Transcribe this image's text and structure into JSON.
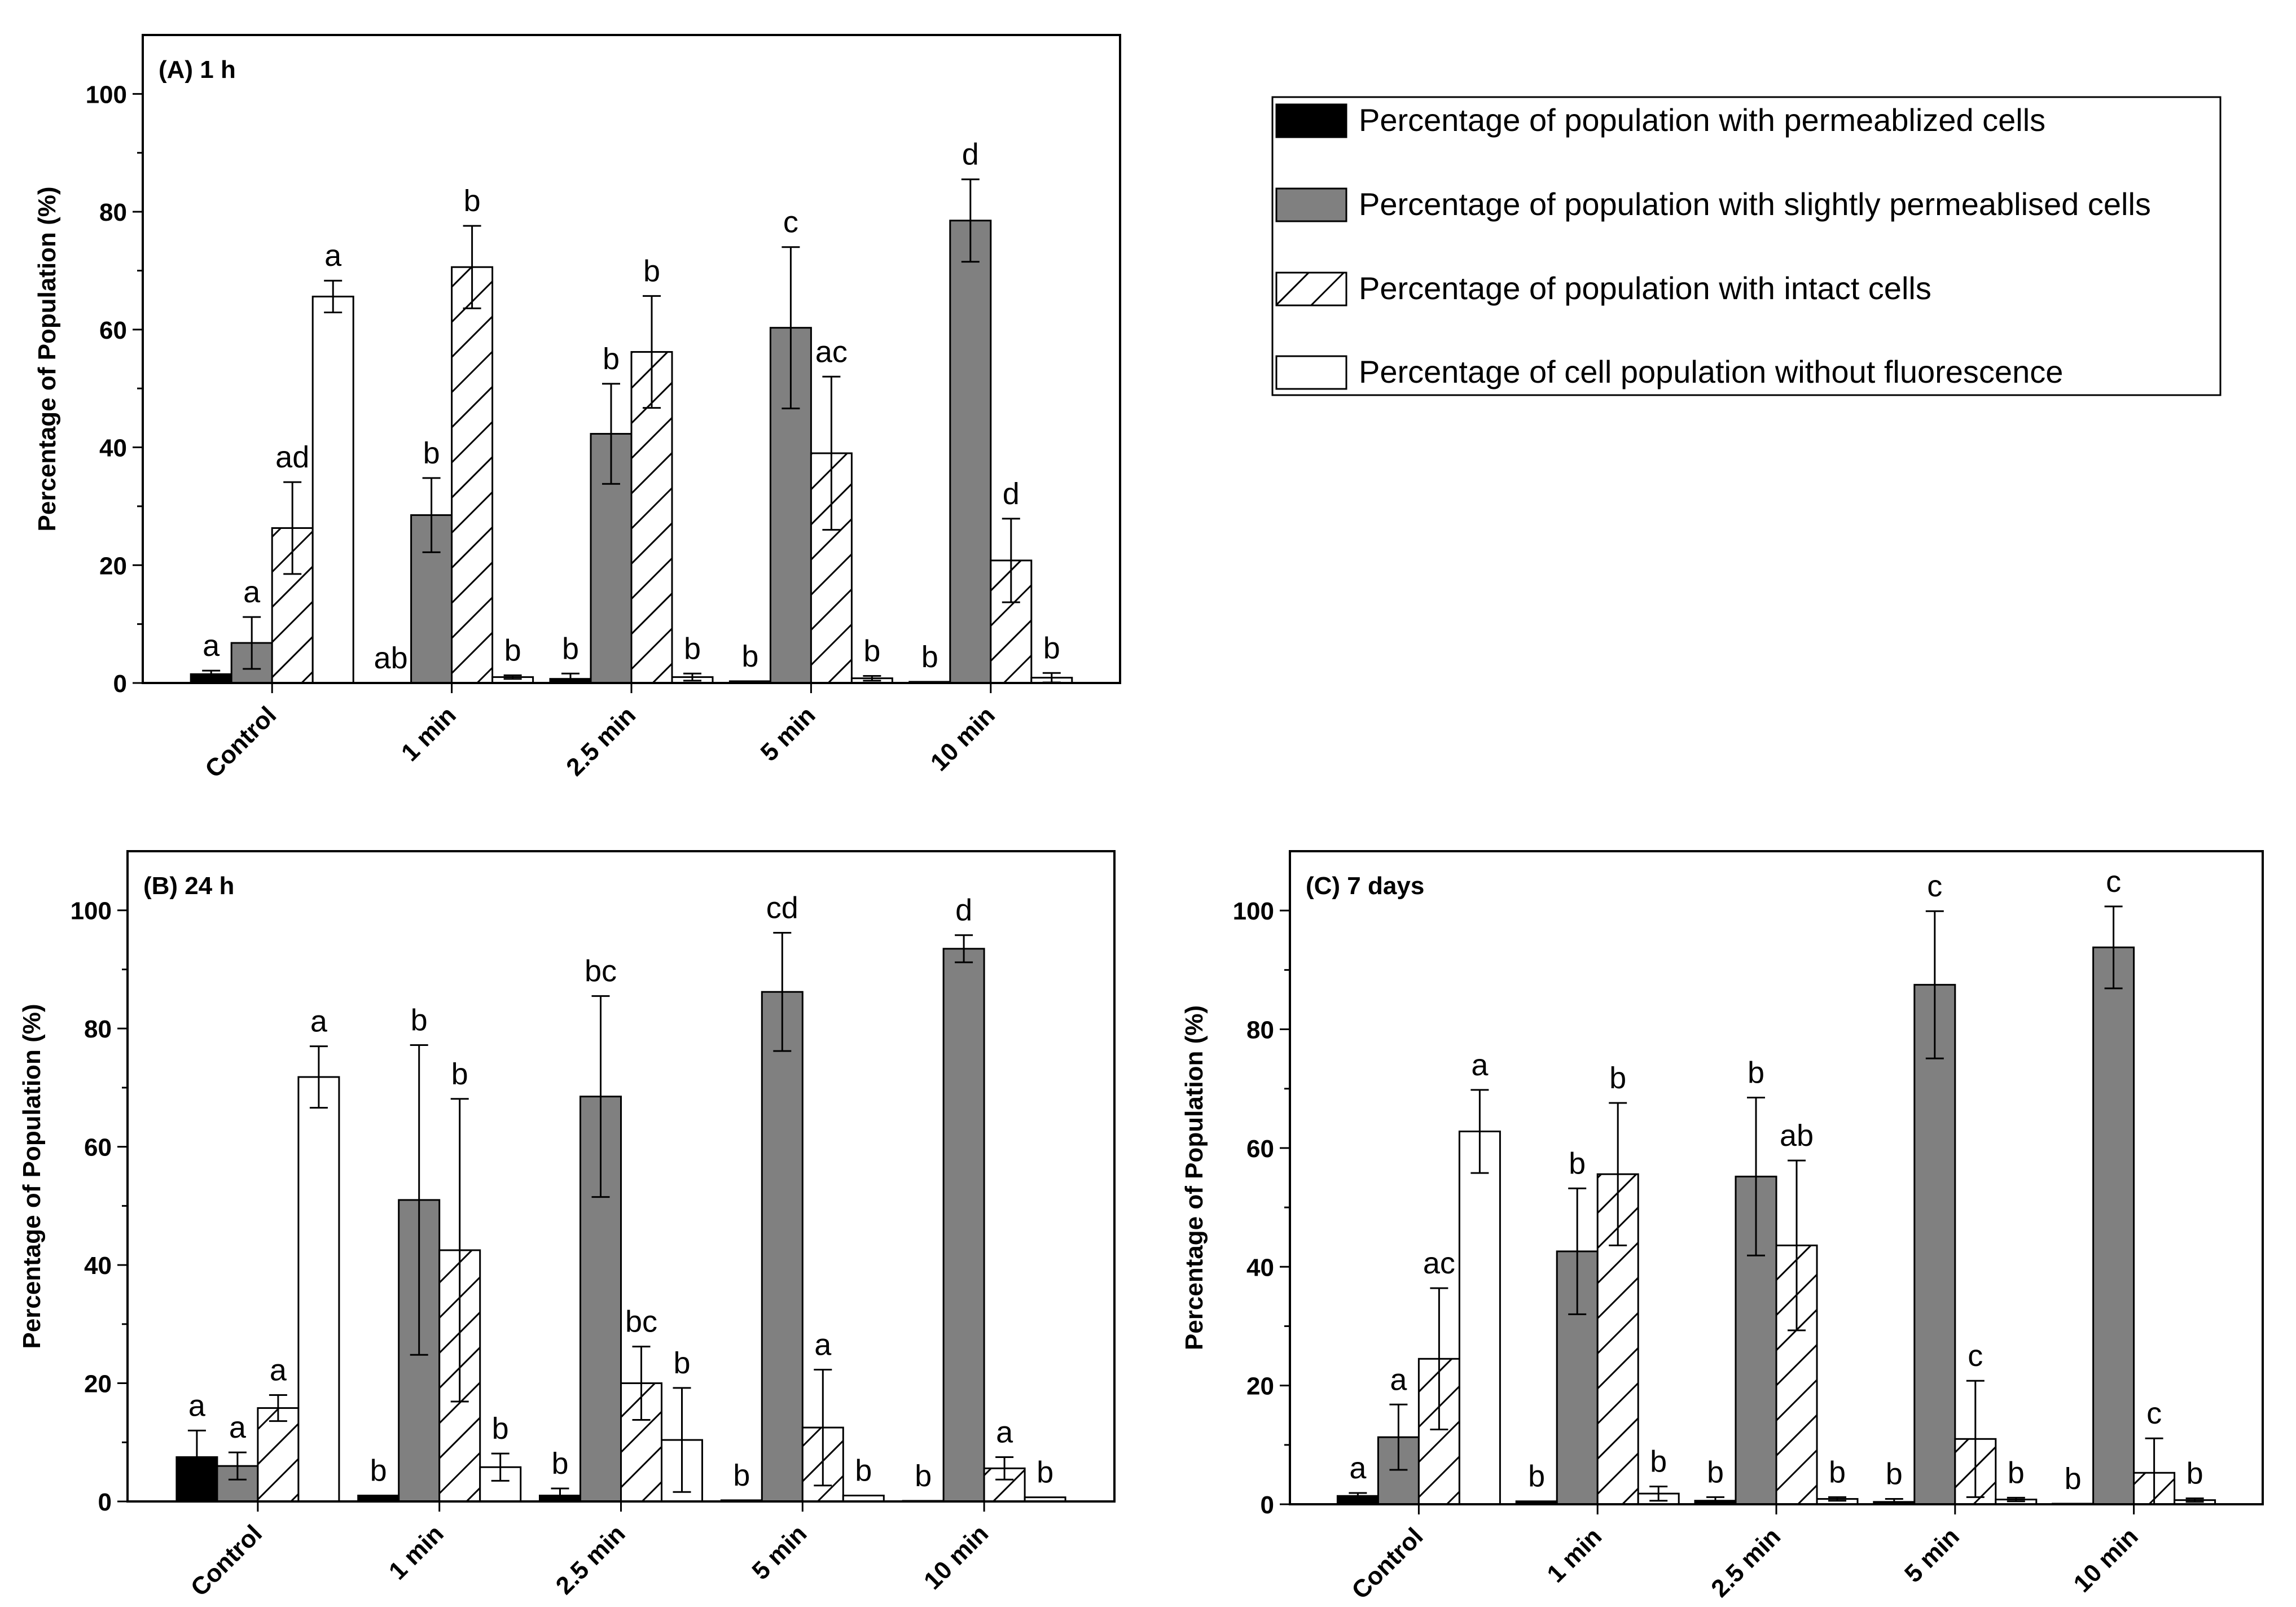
{
  "legend": {
    "entries": [
      {
        "key": "permeabilized",
        "label": "Percentage of population with permeablized cells",
        "fill": "#000000",
        "pattern": "none"
      },
      {
        "key": "slightly",
        "label": "Percentage of population with slightly permeablised cells",
        "fill": "#808080",
        "pattern": "none"
      },
      {
        "key": "intact",
        "label": "Percentage of population with intact cells",
        "fill": "#ffffff",
        "pattern": "hatch"
      },
      {
        "key": "nofluor",
        "label": "Percentage of cell population without fluorescence",
        "fill": "#ffffff",
        "pattern": "none"
      }
    ]
  },
  "chart_data": [
    {
      "id": "A",
      "type": "bar",
      "title": "(A) 1 h",
      "ylabel": "Percentage of Population (%)",
      "xlabel": "",
      "ylim": [
        0,
        110
      ],
      "yticks": [
        0,
        20,
        40,
        60,
        80,
        100
      ],
      "categories": [
        "Control",
        "1 min",
        "2.5 min",
        "5 min",
        "10 min"
      ],
      "series": [
        {
          "name": "Percentage of population with permeablized cells",
          "values": [
            1.5,
            0,
            0.7,
            0.3,
            0.2
          ],
          "errors": [
            0.6,
            0,
            0.9,
            0,
            0
          ],
          "labels": [
            "a",
            "ab",
            "b",
            "b",
            "b"
          ]
        },
        {
          "name": "Percentage of population with slightly permeablised cells",
          "values": [
            6.8,
            28.5,
            42.3,
            60.3,
            78.5
          ],
          "errors": [
            4.4,
            6.3,
            8.5,
            13.7,
            7.0
          ],
          "labels": [
            "a",
            "b",
            "b",
            "c",
            "d"
          ]
        },
        {
          "name": "Percentage of population with intact cells",
          "values": [
            26.3,
            70.6,
            56.2,
            39.0,
            20.8
          ],
          "errors": [
            7.8,
            7.0,
            9.5,
            13.0,
            7.1
          ],
          "labels": [
            "ad",
            "b",
            "b",
            "ac",
            "d"
          ]
        },
        {
          "name": "Percentage of cell population without fluorescence",
          "values": [
            65.6,
            1.0,
            1.0,
            0.8,
            0.9
          ],
          "errors": [
            2.7,
            0.3,
            0.6,
            0.4,
            0.8
          ],
          "labels": [
            "a",
            "b",
            "b",
            "b",
            "b"
          ]
        }
      ]
    },
    {
      "id": "B",
      "type": "bar",
      "title": "(B) 24 h",
      "ylabel": "Percentage of Population (%)",
      "xlabel": "",
      "ylim": [
        0,
        110
      ],
      "yticks": [
        0,
        20,
        40,
        60,
        80,
        100
      ],
      "categories": [
        "Control",
        "1 min",
        "2.5 min",
        "5 min",
        "10 min"
      ],
      "series": [
        {
          "name": "Percentage of population with permeablized cells",
          "values": [
            7.5,
            1.0,
            1.0,
            0.2,
            0.1
          ],
          "errors": [
            4.5,
            0,
            1.2,
            0,
            0
          ],
          "labels": [
            "a",
            "b",
            "b",
            "b",
            "b"
          ]
        },
        {
          "name": "Percentage of population with slightly permeablised cells",
          "values": [
            6.0,
            51.0,
            68.5,
            86.2,
            93.5
          ],
          "errors": [
            2.3,
            26.2,
            17.0,
            10.0,
            2.3
          ],
          "labels": [
            "a",
            "b",
            "bc",
            "cd",
            "d"
          ]
        },
        {
          "name": "Percentage of population with intact cells",
          "values": [
            15.8,
            42.5,
            20.0,
            12.5,
            5.6
          ],
          "errors": [
            2.2,
            25.6,
            6.2,
            9.8,
            1.9
          ],
          "labels": [
            "a",
            "b",
            "bc",
            "a",
            "a"
          ]
        },
        {
          "name": "Percentage of cell population without fluorescence",
          "values": [
            71.8,
            5.8,
            10.4,
            1.0,
            0.7
          ],
          "errors": [
            5.2,
            2.3,
            8.8,
            0,
            0
          ],
          "labels": [
            "a",
            "b",
            "b",
            "b",
            "b"
          ]
        }
      ]
    },
    {
      "id": "C",
      "type": "bar",
      "title": "(C) 7 days",
      "ylabel": "Percentage of Population (%)",
      "xlabel": "",
      "ylim": [
        0,
        110
      ],
      "yticks": [
        0,
        20,
        40,
        60,
        80,
        100
      ],
      "categories": [
        "Control",
        "1 min",
        "2.5 min",
        "5 min",
        "10 min"
      ],
      "series": [
        {
          "name": "Percentage of population with permeablized cells",
          "values": [
            1.4,
            0.5,
            0.6,
            0.4,
            0.1
          ],
          "errors": [
            0.5,
            0,
            0.6,
            0.5,
            0
          ],
          "labels": [
            "a",
            "b",
            "b",
            "b",
            "b"
          ]
        },
        {
          "name": "Percentage of population with slightly permeablised cells",
          "values": [
            11.3,
            42.6,
            55.2,
            87.5,
            93.8
          ],
          "errors": [
            5.5,
            10.6,
            13.3,
            12.4,
            6.9
          ],
          "labels": [
            "a",
            "b",
            "b",
            "c",
            "c"
          ]
        },
        {
          "name": "Percentage of population with intact cells",
          "values": [
            24.5,
            55.6,
            43.6,
            11.0,
            5.3
          ],
          "errors": [
            11.9,
            12.0,
            14.3,
            9.8,
            5.8
          ],
          "labels": [
            "ac",
            "b",
            "ab",
            "c",
            "c"
          ]
        },
        {
          "name": "Percentage of cell population without fluorescence",
          "values": [
            62.8,
            1.8,
            0.9,
            0.8,
            0.7
          ],
          "errors": [
            7.0,
            1.2,
            0.3,
            0.3,
            0.3
          ],
          "labels": [
            "a",
            "b",
            "b",
            "b",
            "b"
          ]
        }
      ]
    }
  ]
}
